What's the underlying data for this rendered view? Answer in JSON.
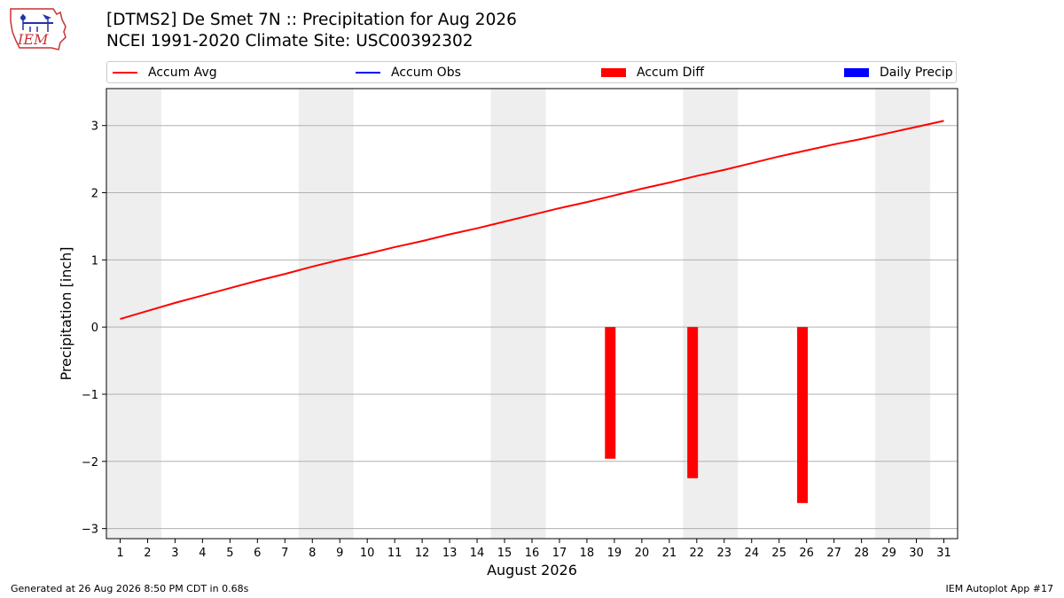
{
  "header": {
    "logo_text": "IEM",
    "title": "[DTMS2] De Smet 7N :: Precipitation for Aug 2026",
    "subtitle": "NCEI 1991-2020 Climate Site: USC00392302"
  },
  "legend": [
    {
      "label": "Accum Avg",
      "kind": "line",
      "color": "#ff0000"
    },
    {
      "label": "Accum Obs",
      "kind": "line",
      "color": "#0000ff"
    },
    {
      "label": "Accum Diff",
      "kind": "box",
      "color": "#ff0000"
    },
    {
      "label": "Daily Precip",
      "kind": "box",
      "color": "#0000ff"
    }
  ],
  "chart_data": {
    "type": "line",
    "xlabel": "August 2026",
    "ylabel": "Precipitation [inch]",
    "xlim": [
      0.5,
      31.5
    ],
    "ylim": [
      -3.15,
      3.55
    ],
    "x_ticks": [
      1,
      2,
      3,
      4,
      5,
      6,
      7,
      8,
      9,
      10,
      11,
      12,
      13,
      14,
      15,
      16,
      17,
      18,
      19,
      20,
      21,
      22,
      23,
      24,
      25,
      26,
      27,
      28,
      29,
      30,
      31
    ],
    "y_ticks": [
      -3,
      -2,
      -1,
      0,
      1,
      2,
      3
    ],
    "y_tick_labels": [
      "−3",
      "−2",
      "−1",
      "0",
      "1",
      "2",
      "3"
    ],
    "grid": "horizontal",
    "weekend_shading": [
      [
        0.5,
        2.5
      ],
      [
        7.5,
        9.5
      ],
      [
        14.5,
        16.5
      ],
      [
        21.5,
        23.5
      ],
      [
        28.5,
        30.5
      ]
    ],
    "series": [
      {
        "name": "Accum Avg",
        "type": "line",
        "color": "#ff0000",
        "x": [
          1,
          2,
          3,
          4,
          5,
          6,
          7,
          8,
          9,
          10,
          11,
          12,
          13,
          14,
          15,
          16,
          17,
          18,
          19,
          20,
          21,
          22,
          23,
          24,
          25,
          26,
          27,
          28,
          29,
          30,
          31
        ],
        "values": [
          0.12,
          0.24,
          0.36,
          0.47,
          0.58,
          0.69,
          0.79,
          0.9,
          1.0,
          1.09,
          1.19,
          1.28,
          1.38,
          1.47,
          1.57,
          1.67,
          1.77,
          1.86,
          1.96,
          2.06,
          2.15,
          2.25,
          2.34,
          2.44,
          2.54,
          2.63,
          2.72,
          2.8,
          2.89,
          2.98,
          3.07
        ]
      },
      {
        "name": "Accum Diff",
        "type": "bar",
        "color": "#ff0000",
        "x": [
          18.85,
          21.85,
          25.85
        ],
        "values": [
          -1.96,
          -2.25,
          -2.62
        ]
      }
    ]
  },
  "footer": {
    "left": "Generated at 26 Aug 2026 8:50 PM CDT in 0.68s",
    "right": "IEM Autoplot App #17"
  }
}
